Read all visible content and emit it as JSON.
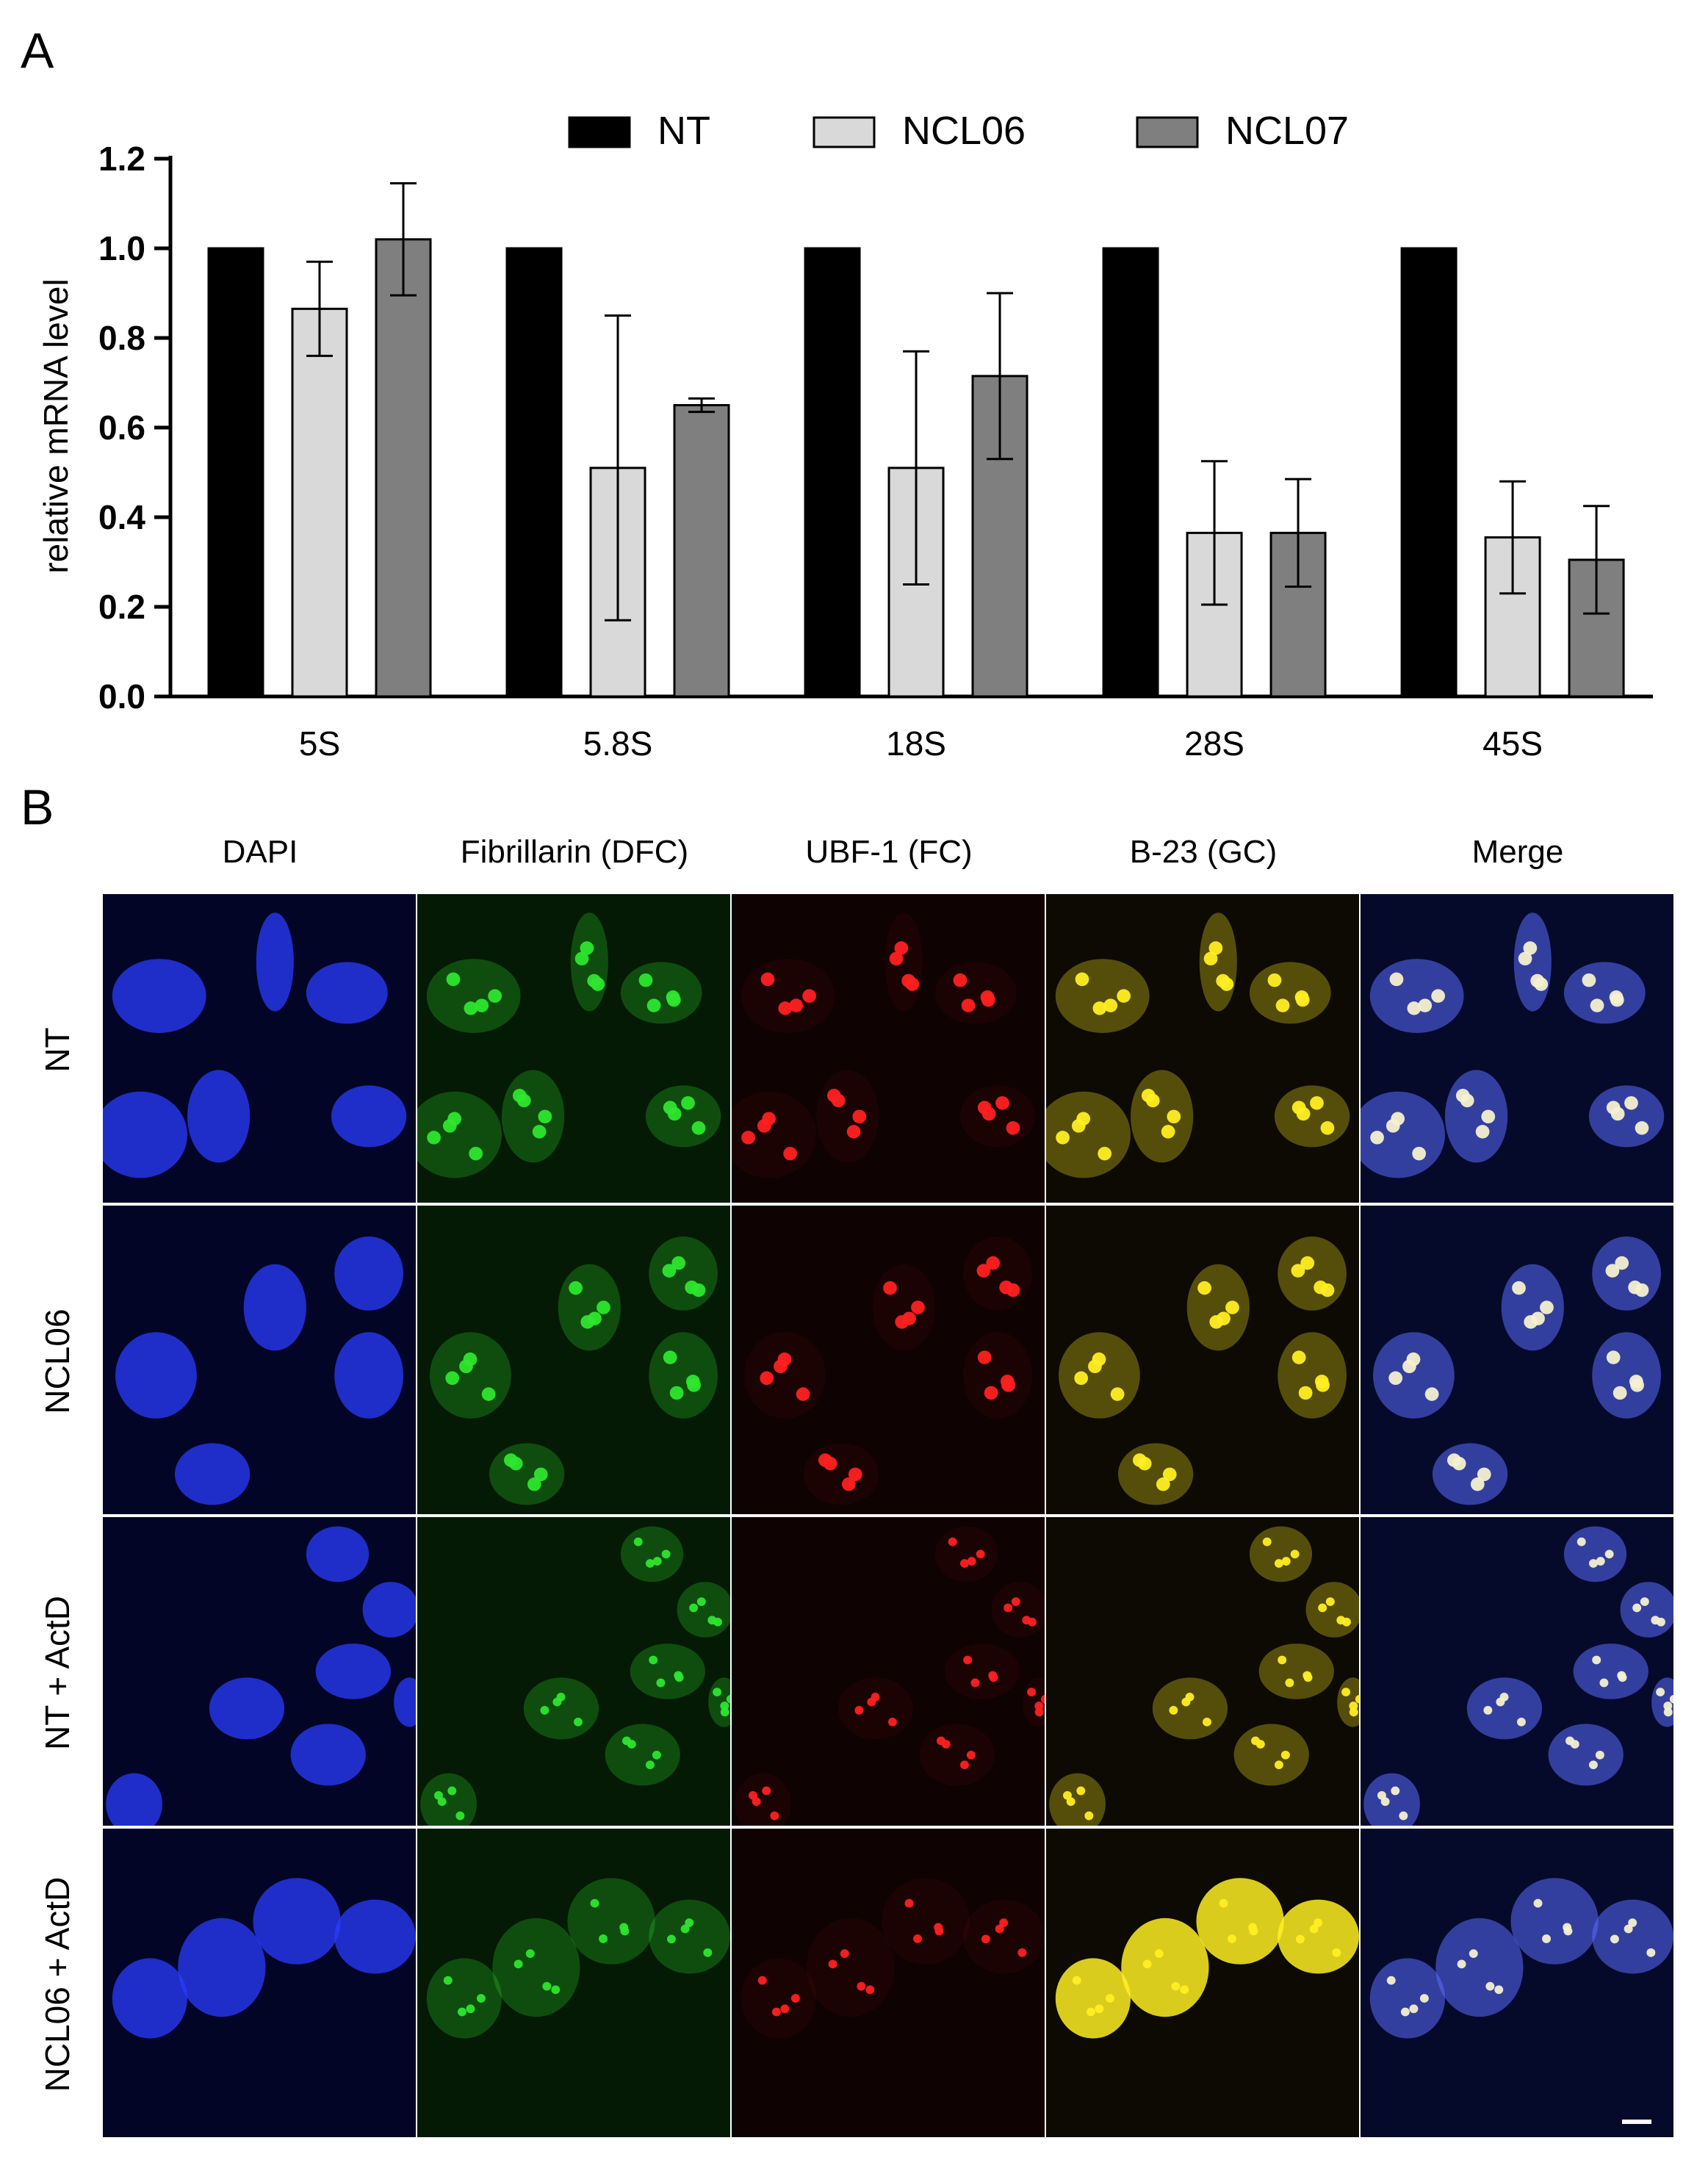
{
  "panel_a": {
    "letter": "A"
  },
  "panel_b": {
    "letter": "B",
    "columns": [
      "DAPI",
      "Fibrillarin (DFC)",
      "UBF-1 (FC)",
      "B-23 (GC)",
      "Merge"
    ],
    "rows": [
      "NT",
      "NCL06",
      "NT + ActD",
      "NCL06 + ActD"
    ],
    "channel_colors": {
      "DAPI": "#2a3cff",
      "Fibrillarin (DFC)": "#2ee62e",
      "UBF-1 (FC)": "#ff2020",
      "B-23 (GC)": "#ffee22",
      "Merge": "#5a6cff"
    }
  },
  "chart_data": {
    "type": "bar",
    "categories": [
      "5S",
      "5.8S",
      "18S",
      "28S",
      "45S"
    ],
    "ylabel": "relative mRNA level",
    "ylim": [
      0,
      1.2
    ],
    "yticks": [
      "0.0",
      "0.2",
      "0.4",
      "0.6",
      "0.8",
      "1.0",
      "1.2"
    ],
    "legend_placement": "top",
    "series": [
      {
        "name": "NT",
        "color": "#000000",
        "values": [
          1.0,
          1.0,
          1.0,
          1.0,
          1.0
        ],
        "errors": [
          0,
          0,
          0,
          0,
          0
        ]
      },
      {
        "name": "NCL06",
        "color": "#d9d9d9",
        "values": [
          0.865,
          0.51,
          0.51,
          0.365,
          0.355
        ],
        "errors": [
          0.105,
          0.34,
          0.26,
          0.16,
          0.125
        ]
      },
      {
        "name": "NCL07",
        "color": "#7f7f7f",
        "values": [
          1.02,
          0.65,
          0.715,
          0.365,
          0.305
        ],
        "errors": [
          0.125,
          0.015,
          0.185,
          0.12,
          0.12
        ]
      }
    ]
  }
}
